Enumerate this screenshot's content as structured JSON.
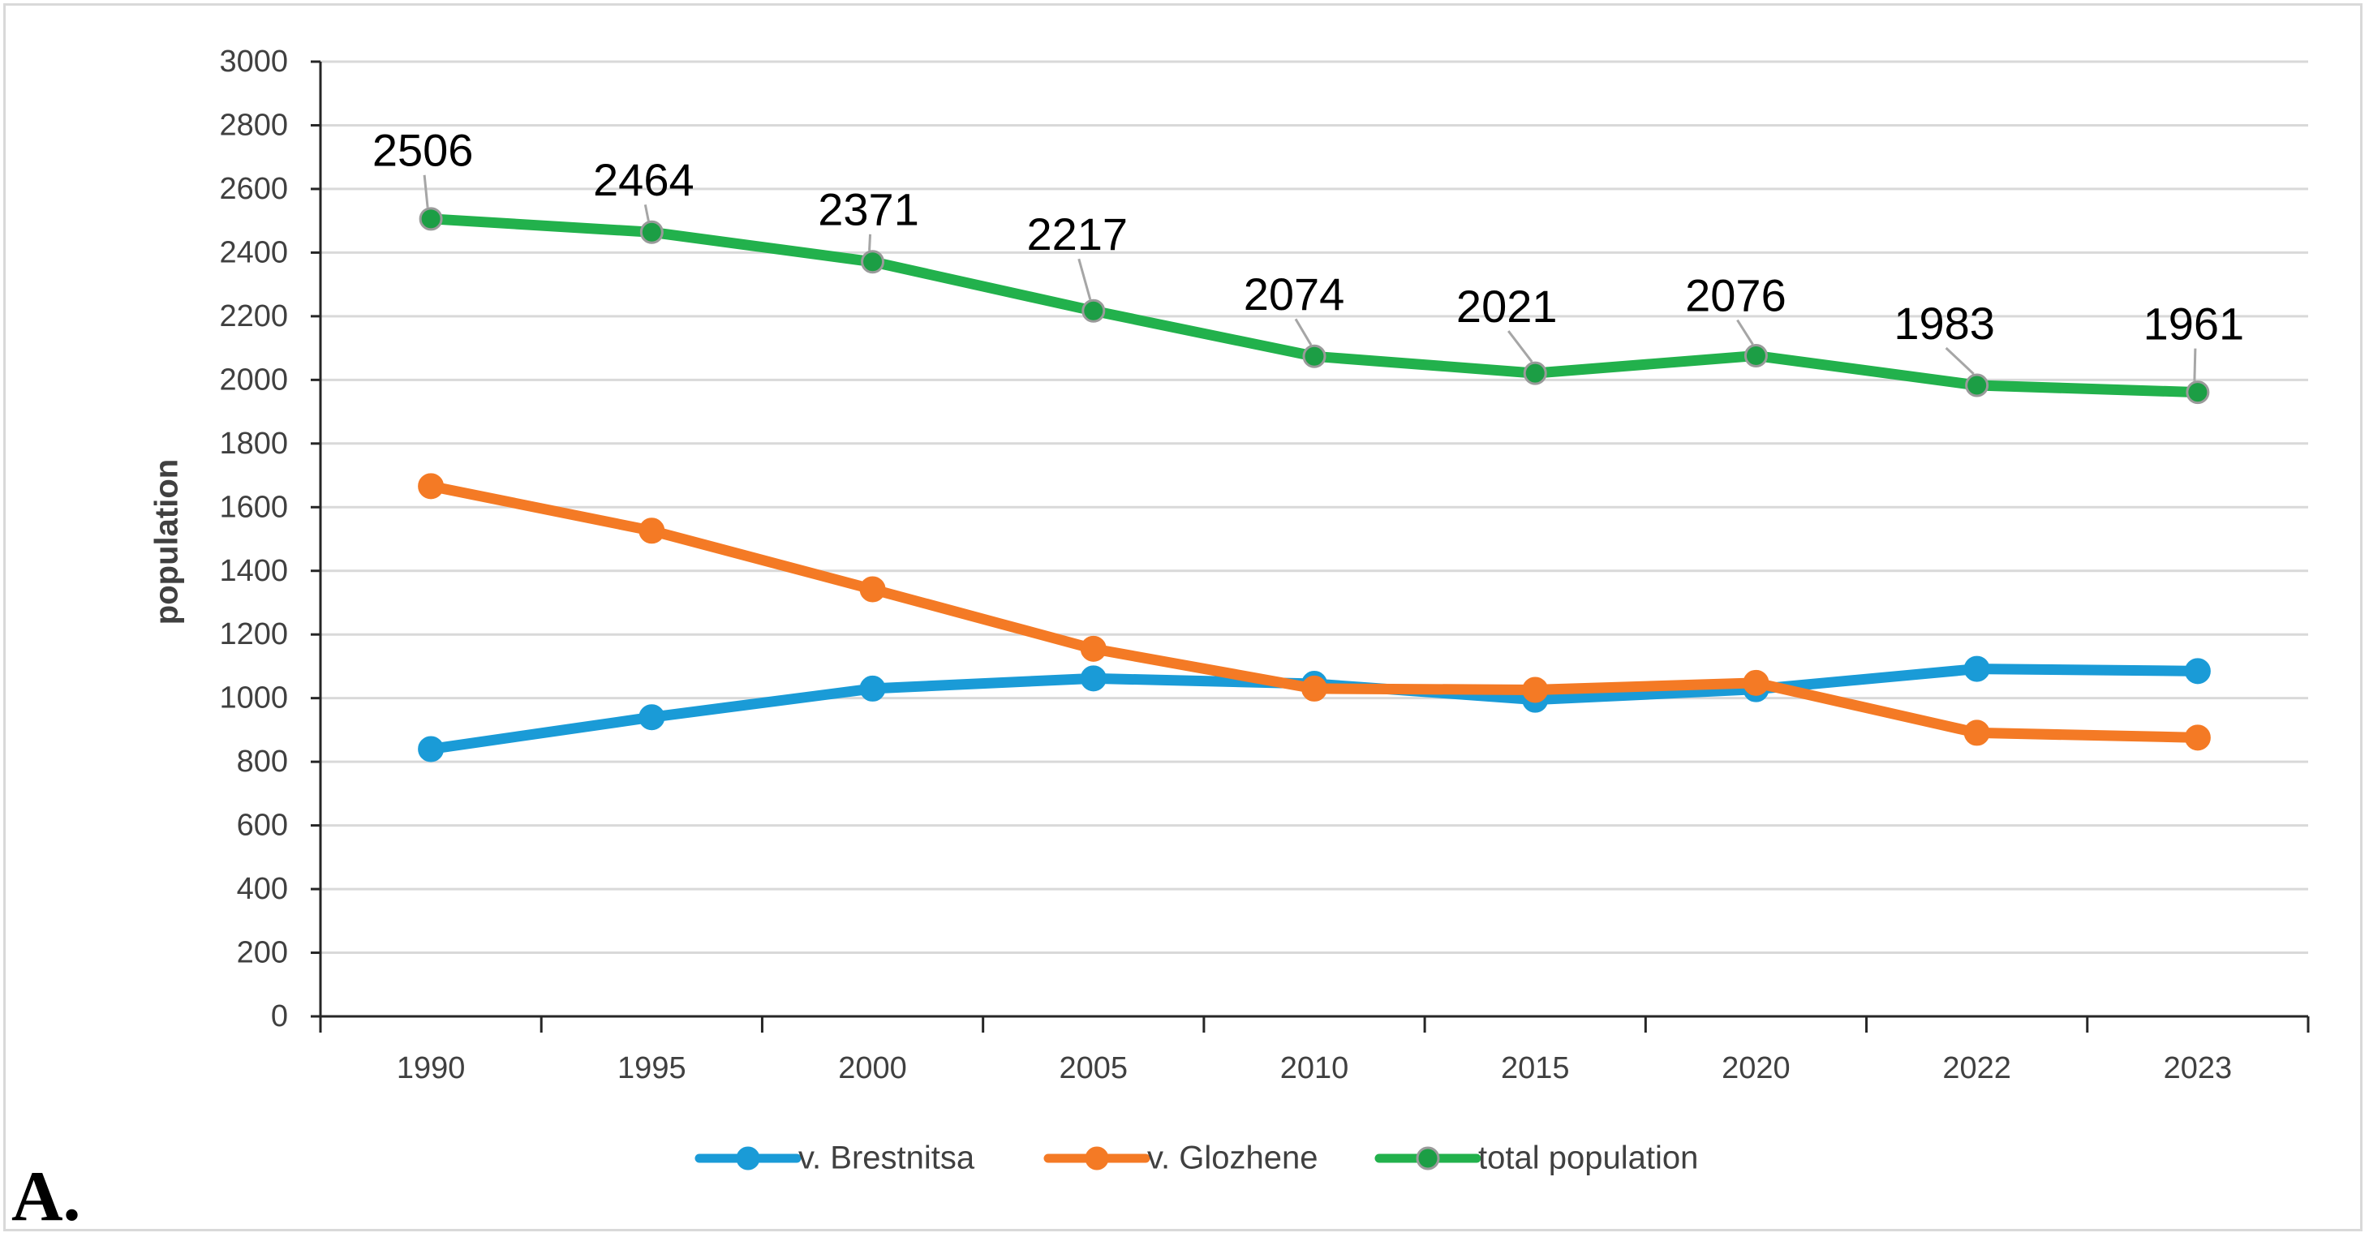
{
  "panel_label": "A.",
  "chart_data": {
    "type": "line",
    "title": "",
    "xlabel": "",
    "ylabel": "population",
    "categories": [
      "1990",
      "1995",
      "2000",
      "2005",
      "2010",
      "2015",
      "2020",
      "2022",
      "2023"
    ],
    "ylim": [
      0,
      3000
    ],
    "yticks": [
      0,
      200,
      400,
      600,
      800,
      1000,
      1200,
      1400,
      1600,
      1800,
      2000,
      2200,
      2400,
      2600,
      2800,
      3000
    ],
    "grid": true,
    "legend_position": "bottom",
    "series": [
      {
        "name": "v. Brestnitsa",
        "color": "#1a9bd7",
        "marker_fill": "#1a9bd7",
        "values": [
          840,
          940,
          1030,
          1062,
          1045,
          995,
          1028,
          1092,
          1085
        ],
        "show_labels": false
      },
      {
        "name": "v. Glozhene",
        "color": "#f47a25",
        "marker_fill": "#f47a25",
        "values": [
          1666,
          1526,
          1342,
          1155,
          1030,
          1026,
          1048,
          891,
          876
        ],
        "show_labels": false
      },
      {
        "name": "total population",
        "color": "#22b14c",
        "marker_fill": "#1c9e45",
        "values": [
          2506,
          2464,
          2371,
          2217,
          2074,
          2021,
          2076,
          1983,
          1961
        ],
        "show_labels": true
      }
    ]
  }
}
